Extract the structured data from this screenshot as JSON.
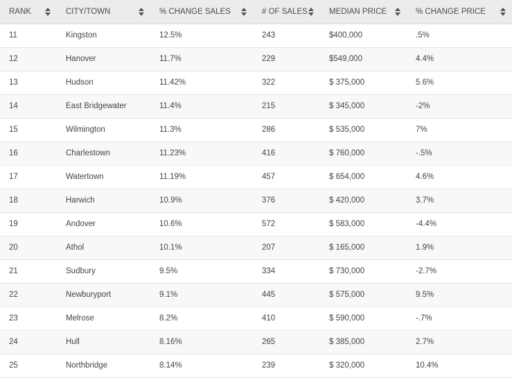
{
  "table": {
    "headers": [
      "RANK",
      "CITY/TOWN",
      "% CHANGE SALES",
      "# OF SALES",
      "MEDIAN PRICE",
      "% CHANGE PRICE"
    ],
    "rows": [
      [
        "11",
        "Kingston",
        "12.5%",
        "243",
        "$400,000",
        ".5%"
      ],
      [
        "12",
        "Hanover",
        "11.7%",
        "229",
        "$549,000",
        "4.4%"
      ],
      [
        "13",
        "Hudson",
        "11.42%",
        "322",
        "$ 375,000",
        "5.6%"
      ],
      [
        "14",
        "East Bridgewater",
        "11.4%",
        "215",
        "$ 345,000",
        "-2%"
      ],
      [
        "15",
        "Wilmington",
        "11.3%",
        "286",
        "$ 535,000",
        "7%"
      ],
      [
        "16",
        "Charlestown",
        "11.23%",
        "416",
        "$ 760,000",
        "-.5%"
      ],
      [
        "17",
        "Watertown",
        "11.19%",
        "457",
        "$ 654,000",
        "4.6%"
      ],
      [
        "18",
        "Harwich",
        "10.9%",
        "376",
        "$ 420,000",
        "3.7%"
      ],
      [
        "19",
        "Andover",
        "10.6%",
        "572",
        "$ 583,000",
        "-4.4%"
      ],
      [
        "20",
        "Athol",
        "10.1%",
        "207",
        "$ 165,000",
        "1.9%"
      ],
      [
        "21",
        "Sudbury",
        "9.5%",
        "334",
        "$ 730,000",
        "-2.7%"
      ],
      [
        "22",
        "Newburyport",
        "9.1%",
        "445",
        "$ 575,000",
        "9.5%"
      ],
      [
        "23",
        "Melrose",
        "8.2%",
        "410",
        "$ 590,000",
        "-.7%"
      ],
      [
        "24",
        "Hull",
        "8.16%",
        "265",
        "$ 385,000",
        "2.7%"
      ],
      [
        "25",
        "Northbridge",
        "8.14%",
        "239",
        "$ 320,000",
        "10.4%"
      ]
    ]
  }
}
